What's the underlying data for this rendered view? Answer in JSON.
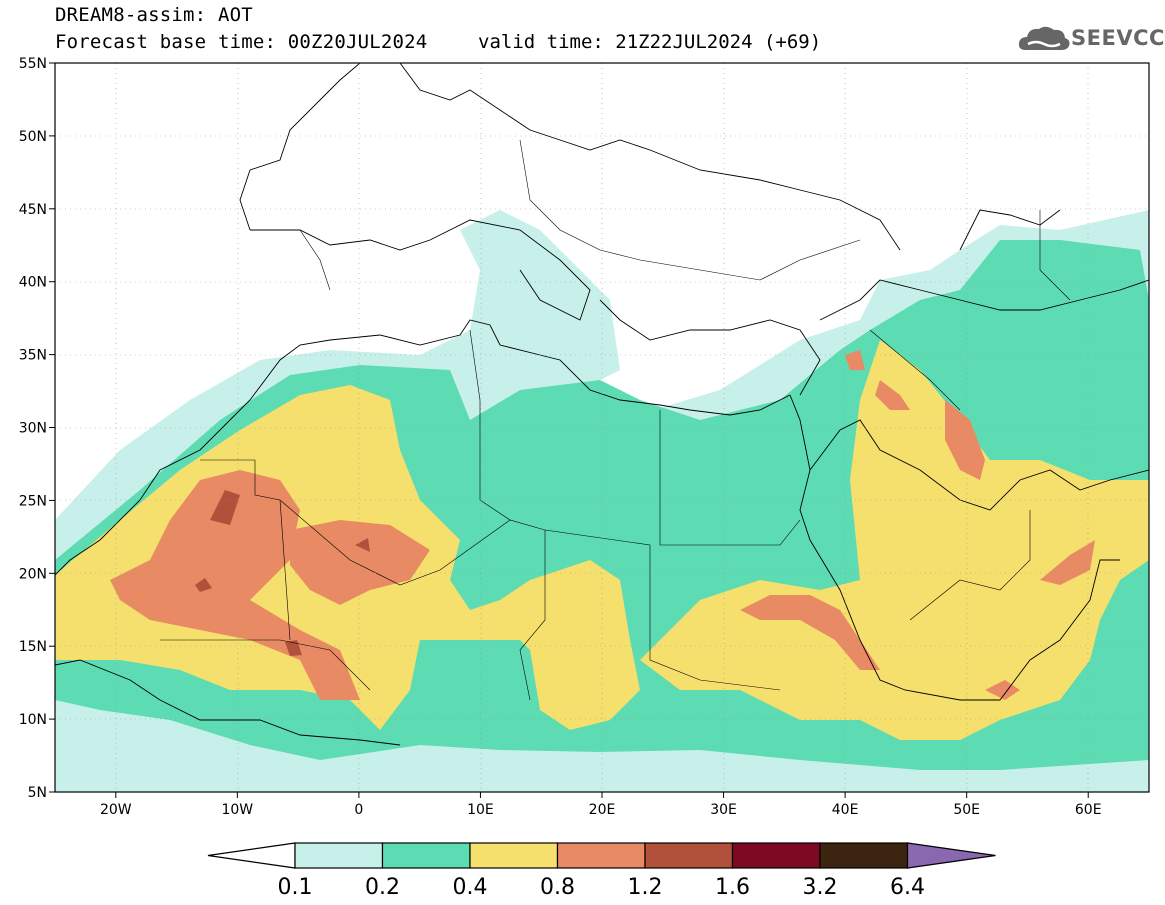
{
  "header": {
    "line1": "DREAM8-assim: AOT",
    "line2": "Forecast base time: 00Z20JUL2024",
    "valid": "valid time: 21Z22JUL2024 (+69)",
    "logo_text": "SEEVCCC"
  },
  "map": {
    "lat_labels": [
      "55N",
      "50N",
      "45N",
      "40N",
      "35N",
      "30N",
      "25N",
      "20N",
      "15N",
      "10N",
      "5N"
    ],
    "lon_labels": [
      "20W",
      "10W",
      "0",
      "10E",
      "20E",
      "30E",
      "40E",
      "50E",
      "60E"
    ],
    "lon_range": [
      -25,
      65
    ],
    "lat_range": [
      5,
      55
    ]
  },
  "colorbar": {
    "levels": [
      "0.1",
      "0.2",
      "0.4",
      "0.8",
      "1.2",
      "1.6",
      "3.2",
      "6.4"
    ],
    "colors": [
      "#c8f0ea",
      "#5ddbb2",
      "#f5e06e",
      "#e88a63",
      "#b1503b",
      "#7d0a23",
      "#3d2410",
      "#8a68b0"
    ]
  }
}
